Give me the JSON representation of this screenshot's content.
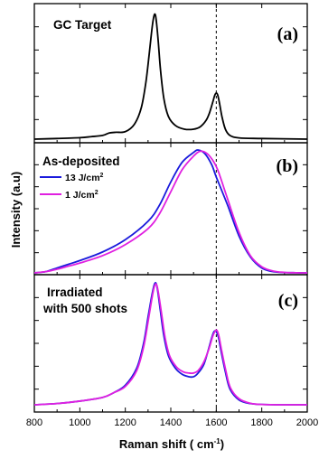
{
  "chart_data": {
    "type": "line",
    "xlabel": "Raman shift ( cm",
    "xlabel_sup": "-1",
    "xlabel_suffix": ")",
    "ylabel": "Intensity (a.u)",
    "xlim": [
      800,
      2000
    ],
    "xticks": [
      "800",
      "1000",
      "1200",
      "1400",
      "1600",
      "1800",
      "2000"
    ],
    "reference_line_x": 1600,
    "panels": [
      {
        "label": "(a)",
        "text_lines": [
          "GC Target"
        ],
        "series": [
          {
            "name": "",
            "color": "#000000",
            "x": [
              800,
              900,
              1000,
              1050,
              1100,
              1130,
              1160,
              1200,
              1240,
              1270,
              1290,
              1305,
              1315,
              1322,
              1328,
              1333,
              1338,
              1345,
              1355,
              1370,
              1390,
              1420,
              1460,
              1500,
              1530,
              1555,
              1570,
              1585,
              1593,
              1600,
              1607,
              1615,
              1625,
              1640,
              1660,
              1700,
              1800,
              2000
            ],
            "y": [
              0.0,
              0.005,
              0.012,
              0.02,
              0.03,
              0.05,
              0.055,
              0.06,
              0.12,
              0.25,
              0.45,
              0.68,
              0.85,
              0.95,
              1.0,
              0.99,
              0.92,
              0.78,
              0.55,
              0.32,
              0.18,
              0.11,
              0.08,
              0.08,
              0.1,
              0.15,
              0.21,
              0.3,
              0.35,
              0.37,
              0.35,
              0.28,
              0.18,
              0.08,
              0.03,
              0.01,
              0.005,
              0.0
            ]
          }
        ]
      },
      {
        "label": "(b)",
        "text_lines": [
          "As-deposited"
        ],
        "series": [
          {
            "name": "13 J/cm",
            "name_sup": "2",
            "color": "#1a1adc",
            "x": [
              800,
              850,
              900,
              950,
              1000,
              1100,
              1200,
              1300,
              1350,
              1400,
              1450,
              1500,
              1520,
              1550,
              1580,
              1600,
              1650,
              1700,
              1750,
              1800,
              1850,
              1900,
              1950,
              2000
            ],
            "y": [
              0.0,
              0.01,
              0.04,
              0.07,
              0.1,
              0.17,
              0.27,
              0.42,
              0.55,
              0.74,
              0.9,
              0.98,
              1.0,
              0.97,
              0.88,
              0.78,
              0.55,
              0.3,
              0.13,
              0.04,
              0.01,
              0.003,
              0.001,
              0.0
            ]
          },
          {
            "name": "1 J/cm",
            "name_sup": "2",
            "color": "#e020e0",
            "x": [
              800,
              850,
              900,
              950,
              1000,
              1100,
              1200,
              1300,
              1350,
              1400,
              1450,
              1500,
              1530,
              1560,
              1590,
              1610,
              1650,
              1700,
              1750,
              1800,
              1850,
              1900,
              1950,
              2000
            ],
            "y": [
              0.0,
              0.01,
              0.03,
              0.055,
              0.08,
              0.14,
              0.23,
              0.36,
              0.48,
              0.66,
              0.84,
              0.95,
              0.99,
              0.97,
              0.9,
              0.82,
              0.6,
              0.33,
              0.14,
              0.05,
              0.015,
              0.004,
              0.001,
              0.0
            ]
          }
        ]
      },
      {
        "label": "(c)",
        "text_lines": [
          "Irradiated",
          "with 500 shots"
        ],
        "series": [
          {
            "name": "",
            "color": "#1a1adc",
            "x": [
              800,
              900,
              1000,
              1100,
              1150,
              1200,
              1250,
              1280,
              1300,
              1315,
              1325,
              1332,
              1338,
              1345,
              1355,
              1370,
              1390,
              1420,
              1450,
              1480,
              1500,
              1520,
              1545,
              1565,
              1580,
              1590,
              1600,
              1610,
              1620,
              1640,
              1660,
              1700,
              1750,
              1800,
              1900,
              2000
            ],
            "y": [
              0.0,
              0.01,
              0.03,
              0.06,
              0.1,
              0.16,
              0.3,
              0.5,
              0.72,
              0.88,
              0.97,
              1.0,
              0.98,
              0.9,
              0.76,
              0.56,
              0.4,
              0.3,
              0.25,
              0.23,
              0.23,
              0.26,
              0.33,
              0.45,
              0.55,
              0.6,
              0.6,
              0.55,
              0.45,
              0.27,
              0.13,
              0.04,
              0.01,
              0.003,
              0.0,
              0.0
            ]
          },
          {
            "name": "",
            "color": "#e020e0",
            "x": [
              800,
              900,
              1000,
              1100,
              1150,
              1200,
              1250,
              1280,
              1300,
              1315,
              1325,
              1333,
              1340,
              1348,
              1360,
              1375,
              1395,
              1425,
              1455,
              1480,
              1500,
              1520,
              1545,
              1568,
              1584,
              1594,
              1603,
              1612,
              1622,
              1642,
              1662,
              1700,
              1750,
              1800,
              1900,
              2000
            ],
            "y": [
              0.0,
              0.01,
              0.03,
              0.06,
              0.1,
              0.15,
              0.28,
              0.47,
              0.68,
              0.85,
              0.95,
              0.99,
              0.97,
              0.89,
              0.74,
              0.55,
              0.4,
              0.31,
              0.27,
              0.26,
              0.26,
              0.28,
              0.35,
              0.46,
              0.56,
              0.6,
              0.61,
              0.56,
              0.46,
              0.28,
              0.14,
              0.05,
              0.012,
              0.003,
              0.0,
              0.0
            ]
          }
        ]
      }
    ]
  }
}
